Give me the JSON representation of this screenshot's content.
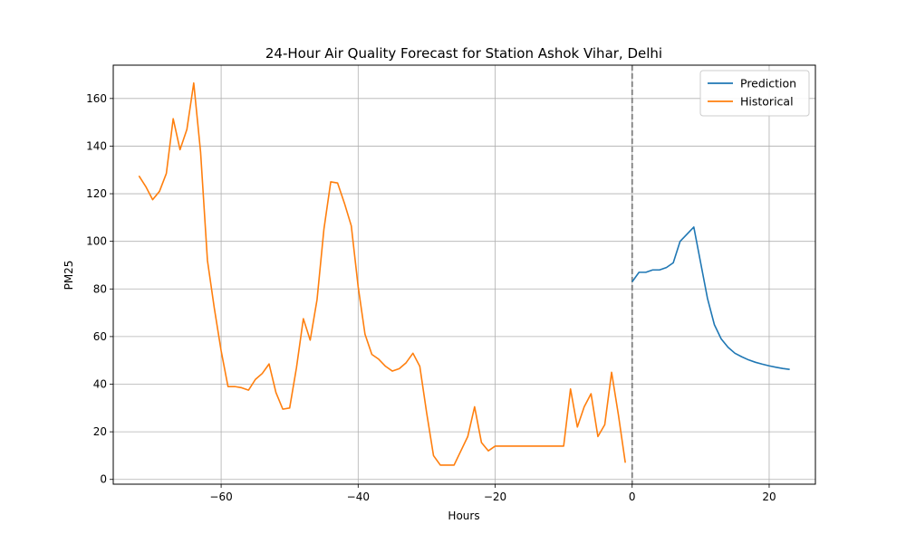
{
  "chart_data": {
    "type": "line",
    "title": "24-Hour Air Quality Forecast for Station Ashok Vihar, Delhi",
    "xlabel": "Hours",
    "ylabel": "PM25",
    "xlim": [
      -75.75,
      26.75
    ],
    "ylim": [
      -2,
      174
    ],
    "xticks": [
      -60,
      -40,
      -20,
      0,
      20
    ],
    "xtick_labels": [
      "−60",
      "−40",
      "−20",
      "0",
      "20"
    ],
    "yticks": [
      0,
      20,
      40,
      60,
      80,
      100,
      120,
      140,
      160
    ],
    "ytick_labels": [
      "0",
      "20",
      "40",
      "60",
      "80",
      "100",
      "120",
      "140",
      "160"
    ],
    "grid": true,
    "legend_position": "top-right",
    "vline": {
      "x": 0,
      "style": "dashed",
      "color": "#7f7f7f"
    },
    "series": [
      {
        "name": "Prediction",
        "color": "#1f77b4",
        "x": [
          0,
          1,
          2,
          3,
          4,
          5,
          6,
          7,
          8,
          9,
          10,
          11,
          12,
          13,
          14,
          15,
          16,
          17,
          18,
          19,
          20,
          21,
          22,
          23
        ],
        "y": [
          83,
          87,
          87,
          88,
          88,
          89,
          91,
          100,
          103,
          106,
          91,
          76,
          65,
          59,
          55.5,
          53,
          51.5,
          50.2,
          49.2,
          48.4,
          47.7,
          47.1,
          46.6,
          46.2
        ]
      },
      {
        "name": "Historical",
        "color": "#ff7f0e",
        "x": [
          -72,
          -71,
          -70,
          -69,
          -68,
          -67,
          -66,
          -65,
          -64,
          -63,
          -62,
          -61,
          -60,
          -59,
          -58,
          -57,
          -56,
          -55,
          -54,
          -53,
          -52,
          -51,
          -50,
          -49,
          -48,
          -47,
          -46,
          -45,
          -44,
          -43,
          -42,
          -41,
          -40,
          -39,
          -38,
          -37,
          -36,
          -35,
          -34,
          -33,
          -32,
          -31,
          -30,
          -29,
          -28,
          -27,
          -26,
          -25,
          -24,
          -23,
          -22,
          -21,
          -20,
          -19,
          -18,
          -17,
          -16,
          -15,
          -14,
          -13,
          -12,
          -11,
          -10,
          -9,
          -8,
          -7,
          -6,
          -5,
          -4,
          -3,
          -2,
          -1
        ],
        "y": [
          127.5,
          123,
          117.5,
          121,
          128.5,
          151.5,
          138.5,
          147,
          166.5,
          137.5,
          92,
          72,
          54,
          39,
          39,
          38.5,
          37.5,
          42,
          44.5,
          48.5,
          36.5,
          29.5,
          30,
          47,
          67.5,
          58.5,
          75.5,
          105,
          125,
          124.5,
          116,
          106.5,
          81,
          61,
          52.5,
          50.5,
          47.5,
          45.5,
          46.5,
          49,
          53,
          47.5,
          28,
          10,
          6,
          6,
          6,
          12,
          18,
          30.5,
          15.5,
          12,
          14,
          14,
          14,
          14,
          14,
          14,
          14,
          14,
          14,
          14,
          14,
          38,
          22,
          30.5,
          36,
          18,
          23,
          45,
          27,
          7
        ]
      }
    ]
  }
}
